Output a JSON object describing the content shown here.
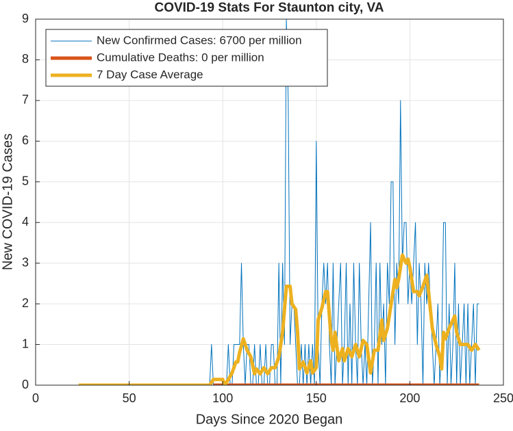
{
  "chart_data": {
    "type": "line",
    "title": "COVID-19 Stats For Staunton city, VA",
    "x_label": "Days Since 2020 Began",
    "y_label": "New COVID-19 Cases",
    "xlim": [
      0,
      250
    ],
    "xticks": [
      0,
      50,
      100,
      150,
      200,
      250
    ],
    "ylim": [
      0,
      9
    ],
    "yticks": [
      0,
      1,
      2,
      3,
      4,
      5,
      6,
      7,
      8,
      9
    ],
    "grid": true,
    "legend": "upper left",
    "series": [
      {
        "name": "New Confirmed Cases: 6700 per million",
        "color": "#0072bd",
        "x": [
          23,
          90,
          91,
          92,
          93,
          94,
          95,
          96,
          97,
          98,
          99,
          100,
          101,
          102,
          103,
          104,
          105,
          106,
          107,
          108,
          109,
          110,
          111,
          112,
          113,
          114,
          115,
          116,
          117,
          118,
          119,
          120,
          121,
          122,
          123,
          124,
          125,
          126,
          127,
          128,
          129,
          130,
          131,
          132,
          133,
          134,
          135,
          136,
          137,
          138,
          139,
          140,
          141,
          142,
          143,
          144,
          145,
          146,
          147,
          148,
          149,
          150,
          151,
          152,
          153,
          154,
          155,
          156,
          157,
          158,
          159,
          160,
          161,
          162,
          163,
          164,
          165,
          166,
          167,
          168,
          169,
          170,
          171,
          172,
          173,
          174,
          175,
          176,
          177,
          178,
          179,
          180,
          181,
          182,
          183,
          184,
          185,
          186,
          187,
          188,
          189,
          190,
          191,
          192,
          193,
          194,
          195,
          196,
          197,
          198,
          199,
          200,
          201,
          202,
          203,
          204,
          205,
          206,
          207,
          208,
          209,
          210,
          211,
          212,
          213,
          214,
          215,
          216,
          217,
          218,
          219,
          220,
          221,
          222,
          223,
          224,
          225,
          226,
          227,
          228,
          229,
          230,
          231,
          232,
          233,
          234,
          235,
          236,
          237
        ],
        "values": [
          0,
          0,
          0,
          0,
          0,
          1,
          0,
          0,
          0,
          0,
          0,
          0,
          0,
          0,
          1,
          0,
          0,
          1,
          1,
          1,
          1,
          3,
          1,
          0,
          1,
          1,
          0,
          0,
          1,
          0,
          0,
          1,
          0,
          0,
          1,
          0,
          0,
          1,
          1,
          0,
          0,
          3,
          0,
          3,
          1,
          9,
          7,
          1,
          2,
          2,
          1,
          0,
          0,
          1,
          0,
          1,
          0,
          1,
          0,
          1,
          0,
          6,
          1,
          0,
          2,
          3,
          2,
          3,
          1,
          0,
          3,
          0,
          1,
          2,
          3,
          0,
          1,
          3,
          0,
          2,
          0,
          3,
          1,
          0,
          3,
          1,
          0,
          1,
          0,
          2,
          4,
          0,
          1,
          3,
          0,
          3,
          1,
          2,
          0,
          3,
          2,
          5,
          5,
          1,
          3,
          2,
          7,
          3,
          4,
          4,
          2,
          3,
          2,
          3,
          4,
          1,
          3,
          2,
          0,
          3,
          2,
          3,
          2,
          1,
          0,
          1,
          2,
          0,
          1,
          4,
          4,
          0,
          2,
          0,
          1,
          3,
          0,
          2,
          0,
          1,
          2,
          0,
          2,
          0,
          1,
          2,
          0,
          2,
          2
        ]
      },
      {
        "name": "Cumulative Deaths: 0 per million",
        "color": "#d95319",
        "x": [
          95,
          237
        ],
        "values": [
          0,
          0
        ]
      },
      {
        "name": "7 Day Case Average",
        "color": "#edb120",
        "x": [
          23,
          93,
          95,
          100,
          101,
          103,
          105,
          107,
          108,
          109,
          111,
          113,
          115,
          117,
          118,
          120,
          122,
          124,
          126,
          128,
          130,
          132,
          134,
          136,
          137,
          139,
          140,
          141,
          143,
          145,
          147,
          148,
          150,
          151,
          153,
          155,
          156,
          158,
          159,
          160,
          162,
          164,
          165,
          167,
          169,
          171,
          173,
          175,
          177,
          179,
          181,
          183,
          185,
          186,
          188,
          190,
          192,
          193,
          194,
          196,
          198,
          199,
          200,
          202,
          204,
          205,
          207,
          209,
          210,
          212,
          214,
          216,
          217,
          218,
          219,
          221,
          223,
          224,
          225,
          227,
          229,
          231,
          233,
          235,
          237
        ],
        "values": [
          0,
          0,
          0.14,
          0.14,
          0,
          0.14,
          0.3,
          0.57,
          0.57,
          0.8,
          1.14,
          0.86,
          0.7,
          0.28,
          0.4,
          0.28,
          0.43,
          0.28,
          0.43,
          0.43,
          0.7,
          1.3,
          2.43,
          2.43,
          2.0,
          1.86,
          1.3,
          0.4,
          0.57,
          0.3,
          0.6,
          0.3,
          0.43,
          1.6,
          1.9,
          2.3,
          2.3,
          1.1,
          0.86,
          1.3,
          0.6,
          0.9,
          0.6,
          0.9,
          0.7,
          1.0,
          0.7,
          1.1,
          1.0,
          0.3,
          0.86,
          0.86,
          1.6,
          1.1,
          1.4,
          2.0,
          2.6,
          2.4,
          2.6,
          3.2,
          3.0,
          3.1,
          2.9,
          2.3,
          2.3,
          2.2,
          2.43,
          2.7,
          2.3,
          1.4,
          1.0,
          0.7,
          0.4,
          1.3,
          1.14,
          1.4,
          1.6,
          1.7,
          1.3,
          1.0,
          1.0,
          1.0,
          0.86,
          1.0,
          0.86
        ]
      }
    ]
  }
}
